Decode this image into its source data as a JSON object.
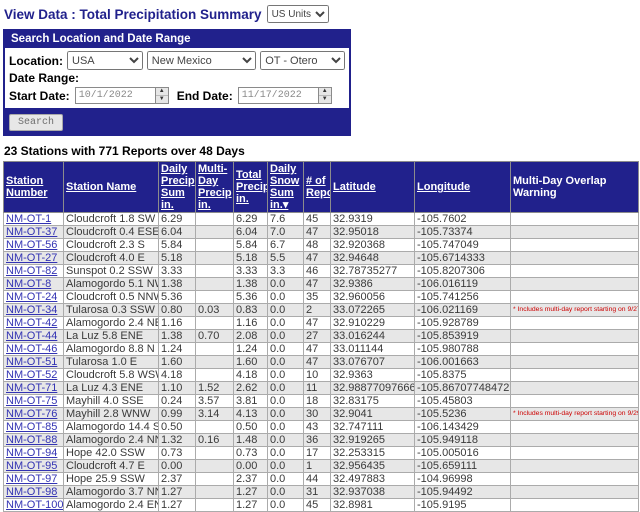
{
  "page": {
    "title": "View Data : Total Precipitation Summary",
    "units_selected": "US Units"
  },
  "search_panel": {
    "header": "Search Location and Date Range",
    "location_label": "Location:",
    "country": "USA",
    "state": "New Mexico",
    "county": "OT - Otero",
    "date_range_label": "Date Range:",
    "start_date_label": "Start Date:",
    "start_date": "10/1/2022",
    "end_date_label": "End Date:",
    "end_date": "11/17/2022",
    "search_button": "Search"
  },
  "summary_line": "23 Stations with 771 Reports over 48 Days",
  "colors": {
    "navy_accent": "#21218C",
    "warning_red": "#cc0000",
    "station_link_blue": "#3333B3",
    "row_stripe_gray": "#e7e7e7"
  },
  "table": {
    "sort": {
      "column": "Daily Snow Sum in.",
      "direction": "desc",
      "indicator": "▾"
    },
    "columns": [
      {
        "label": "Station Number",
        "sortable": true
      },
      {
        "label": "Station Name",
        "sortable": true
      },
      {
        "label": "Daily Precip Sum in.",
        "sortable": true
      },
      {
        "label": "Multi-Day Precip in.",
        "sortable": true
      },
      {
        "label": "Total Precip in.",
        "sortable": true
      },
      {
        "label": "Daily Snow Sum in.",
        "sortable": true
      },
      {
        "label": "# of Reports",
        "sortable": true
      },
      {
        "label": "Latitude",
        "sortable": true
      },
      {
        "label": "Longitude",
        "sortable": true
      },
      {
        "label": "Multi-Day Overlap Warning",
        "sortable": false
      }
    ],
    "rows": [
      {
        "station": "NM-OT-1",
        "name": "Cloudcroft 1.8 SW",
        "daily_precip_sum": "6.29",
        "multi_day_precip": "",
        "total_precip": "6.29",
        "daily_snow_sum": "7.6",
        "num_reports": "45",
        "latitude": "32.9319",
        "longitude": "-105.7602",
        "warning": ""
      },
      {
        "station": "NM-OT-37",
        "name": "Cloudcroft 0.4 ESE",
        "daily_precip_sum": "6.04",
        "multi_day_precip": "",
        "total_precip": "6.04",
        "daily_snow_sum": "7.0",
        "num_reports": "47",
        "latitude": "32.95018",
        "longitude": "-105.73374",
        "warning": ""
      },
      {
        "station": "NM-OT-56",
        "name": "Cloudcroft 2.3 S",
        "daily_precip_sum": "5.84",
        "multi_day_precip": "",
        "total_precip": "5.84",
        "daily_snow_sum": "6.7",
        "num_reports": "48",
        "latitude": "32.920368",
        "longitude": "-105.747049",
        "warning": ""
      },
      {
        "station": "NM-OT-27",
        "name": "Cloudcroft 4.0 E",
        "daily_precip_sum": "5.18",
        "multi_day_precip": "",
        "total_precip": "5.18",
        "daily_snow_sum": "5.5",
        "num_reports": "47",
        "latitude": "32.94648",
        "longitude": "-105.6714333",
        "warning": ""
      },
      {
        "station": "NM-OT-82",
        "name": "Sunspot 0.2 SSW",
        "daily_precip_sum": "3.33",
        "multi_day_precip": "",
        "total_precip": "3.33",
        "daily_snow_sum": "3.3",
        "num_reports": "46",
        "latitude": "32.78735277",
        "longitude": "-105.8207306",
        "warning": ""
      },
      {
        "station": "NM-OT-8",
        "name": "Alamogordo 5.1 NW",
        "daily_precip_sum": "1.38",
        "multi_day_precip": "",
        "total_precip": "1.38",
        "daily_snow_sum": "0.0",
        "num_reports": "47",
        "latitude": "32.9386",
        "longitude": "-106.016119",
        "warning": ""
      },
      {
        "station": "NM-OT-24",
        "name": "Cloudcroft 0.5 NNW",
        "daily_precip_sum": "5.36",
        "multi_day_precip": "",
        "total_precip": "5.36",
        "daily_snow_sum": "0.0",
        "num_reports": "35",
        "latitude": "32.960056",
        "longitude": "-105.741256",
        "warning": ""
      },
      {
        "station": "NM-OT-34",
        "name": "Tularosa 0.3 SSW",
        "daily_precip_sum": "0.80",
        "multi_day_precip": "0.03",
        "total_precip": "0.83",
        "daily_snow_sum": "0.0",
        "num_reports": "2",
        "latitude": "33.072265",
        "longitude": "-106.021169",
        "warning": "* Includes multi-day report starting on 9/27/2022"
      },
      {
        "station": "NM-OT-42",
        "name": "Alamogordo 2.4 NE",
        "daily_precip_sum": "1.16",
        "multi_day_precip": "",
        "total_precip": "1.16",
        "daily_snow_sum": "0.0",
        "num_reports": "47",
        "latitude": "32.910229",
        "longitude": "-105.928789",
        "warning": ""
      },
      {
        "station": "NM-OT-44",
        "name": "La Luz 5.8 ENE",
        "daily_precip_sum": "1.38",
        "multi_day_precip": "0.70",
        "total_precip": "2.08",
        "daily_snow_sum": "0.0",
        "num_reports": "27",
        "latitude": "33.016244",
        "longitude": "-105.853919",
        "warning": ""
      },
      {
        "station": "NM-OT-46",
        "name": "Alamogordo 8.8 N",
        "daily_precip_sum": "1.24",
        "multi_day_precip": "",
        "total_precip": "1.24",
        "daily_snow_sum": "0.0",
        "num_reports": "47",
        "latitude": "33.011144",
        "longitude": "-105.980788",
        "warning": ""
      },
      {
        "station": "NM-OT-51",
        "name": "Tularosa 1.0 E",
        "daily_precip_sum": "1.60",
        "multi_day_precip": "",
        "total_precip": "1.60",
        "daily_snow_sum": "0.0",
        "num_reports": "47",
        "latitude": "33.076707",
        "longitude": "-106.001663",
        "warning": ""
      },
      {
        "station": "NM-OT-52",
        "name": "Cloudcroft 5.8 WSW",
        "daily_precip_sum": "4.18",
        "multi_day_precip": "",
        "total_precip": "4.18",
        "daily_snow_sum": "0.0",
        "num_reports": "10",
        "latitude": "32.9363",
        "longitude": "-105.8375",
        "warning": ""
      },
      {
        "station": "NM-OT-71",
        "name": "La Luz 4.3 ENE",
        "daily_precip_sum": "1.10",
        "multi_day_precip": "1.52",
        "total_precip": "2.62",
        "daily_snow_sum": "0.0",
        "num_reports": "11",
        "latitude": "32.9887709766626",
        "longitude": "-105.867077484727",
        "warning": ""
      },
      {
        "station": "NM-OT-75",
        "name": "Mayhill 4.0 SSE",
        "daily_precip_sum": "0.24",
        "multi_day_precip": "3.57",
        "total_precip": "3.81",
        "daily_snow_sum": "0.0",
        "num_reports": "18",
        "latitude": "32.83175",
        "longitude": "-105.45803",
        "warning": ""
      },
      {
        "station": "NM-OT-76",
        "name": "Mayhill 2.8 WNW",
        "daily_precip_sum": "0.99",
        "multi_day_precip": "3.14",
        "total_precip": "4.13",
        "daily_snow_sum": "0.0",
        "num_reports": "30",
        "latitude": "32.9041",
        "longitude": "-105.5236",
        "warning": "* Includes multi-day report starting on 9/29/2022"
      },
      {
        "station": "NM-OT-85",
        "name": "Alamogordo 14.4 SW",
        "daily_precip_sum": "0.50",
        "multi_day_precip": "",
        "total_precip": "0.50",
        "daily_snow_sum": "0.0",
        "num_reports": "43",
        "latitude": "32.747111",
        "longitude": "-106.143429",
        "warning": ""
      },
      {
        "station": "NM-OT-88",
        "name": "Alamogordo 2.4 NNE",
        "daily_precip_sum": "1.32",
        "multi_day_precip": "0.16",
        "total_precip": "1.48",
        "daily_snow_sum": "0.0",
        "num_reports": "36",
        "latitude": "32.919265",
        "longitude": "-105.949118",
        "warning": ""
      },
      {
        "station": "NM-OT-94",
        "name": "Hope 42.0 SSW",
        "daily_precip_sum": "0.73",
        "multi_day_precip": "",
        "total_precip": "0.73",
        "daily_snow_sum": "0.0",
        "num_reports": "17",
        "latitude": "32.253315",
        "longitude": "-105.005016",
        "warning": ""
      },
      {
        "station": "NM-OT-95",
        "name": "Cloudcroft 4.7 E",
        "daily_precip_sum": "0.00",
        "multi_day_precip": "",
        "total_precip": "0.00",
        "daily_snow_sum": "0.0",
        "num_reports": "1",
        "latitude": "32.956435",
        "longitude": "-105.659111",
        "warning": ""
      },
      {
        "station": "NM-OT-97",
        "name": "Hope 25.9 SSW",
        "daily_precip_sum": "2.37",
        "multi_day_precip": "",
        "total_precip": "2.37",
        "daily_snow_sum": "0.0",
        "num_reports": "44",
        "latitude": "32.497883",
        "longitude": "-104.96998",
        "warning": ""
      },
      {
        "station": "NM-OT-98",
        "name": "Alamogordo 3.7 NNE",
        "daily_precip_sum": "1.27",
        "multi_day_precip": "",
        "total_precip": "1.27",
        "daily_snow_sum": "0.0",
        "num_reports": "31",
        "latitude": "32.937038",
        "longitude": "-105.94492",
        "warning": ""
      },
      {
        "station": "NM-OT-100",
        "name": "Alamogordo 2.4 ENE",
        "daily_precip_sum": "1.27",
        "multi_day_precip": "",
        "total_precip": "1.27",
        "daily_snow_sum": "0.0",
        "num_reports": "45",
        "latitude": "32.8981",
        "longitude": "-105.9195",
        "warning": ""
      }
    ]
  }
}
